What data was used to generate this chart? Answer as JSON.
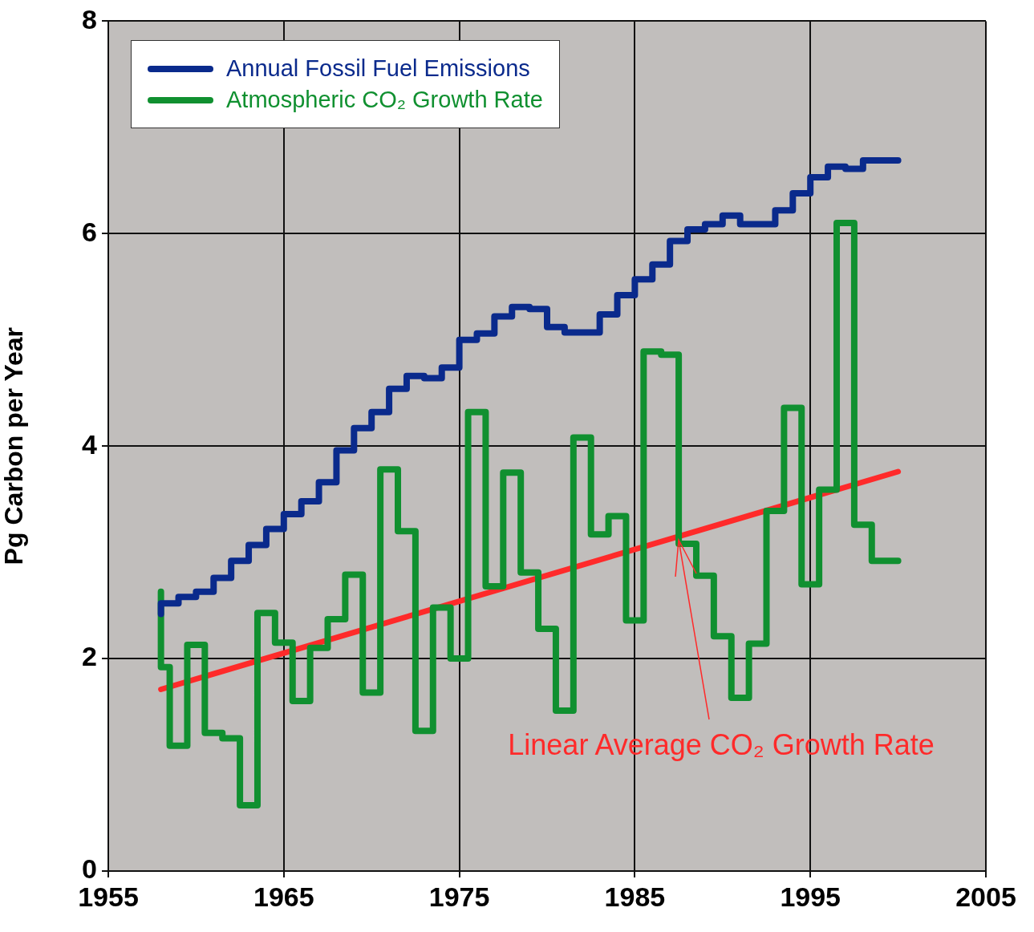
{
  "chart_data": {
    "type": "step",
    "ylabel": "Pg Carbon per Year",
    "xlim": [
      1955,
      2005
    ],
    "xticks": [
      1955,
      1965,
      1975,
      1985,
      1995,
      2005
    ],
    "ylim": [
      0,
      8
    ],
    "yticks": [
      0,
      2,
      4,
      6,
      8
    ],
    "grid": true,
    "legend": "top left",
    "marker": "none",
    "line_style": "solid",
    "annotations": [
      {
        "text": "Linear Average CO₂ Growth Rate",
        "x": 1987.5,
        "y": 3.15
      }
    ],
    "series": [
      {
        "name": "Annual Fossil Fuel Emissions",
        "color": "#0a2a8c",
        "type": "step",
        "x": [
          1958,
          1959,
          1960,
          1961,
          1962,
          1963,
          1964,
          1965,
          1966,
          1967,
          1968,
          1969,
          1970,
          1971,
          1972,
          1973,
          1974,
          1975,
          1976,
          1977,
          1978,
          1979,
          1980,
          1981,
          1982,
          1983,
          1984,
          1985,
          1986,
          1987,
          1988,
          1989,
          1990,
          1991,
          1992,
          1993,
          1994,
          1995,
          1996,
          1997,
          1998,
          1999,
          2000
        ],
        "values": [
          2.42,
          2.52,
          2.58,
          2.63,
          2.76,
          2.92,
          3.07,
          3.22,
          3.36,
          3.48,
          3.66,
          3.96,
          4.17,
          4.32,
          4.54,
          4.66,
          4.64,
          4.74,
          5.0,
          5.06,
          5.22,
          5.31,
          5.29,
          5.12,
          5.07,
          5.07,
          5.24,
          5.42,
          5.57,
          5.71,
          5.93,
          6.04,
          6.09,
          6.17,
          6.09,
          6.09,
          6.22,
          6.38,
          6.53,
          6.63,
          6.61,
          6.69,
          6.69
        ]
      },
      {
        "name": "Atmospheric CO₂ Growth Rate",
        "color": "#109030",
        "type": "step",
        "x": [
          1958,
          1958.5,
          1959.5,
          1960.5,
          1961.5,
          1962.5,
          1963.5,
          1964.5,
          1965.5,
          1966.5,
          1967.5,
          1968.5,
          1969.5,
          1970.5,
          1971.5,
          1972.5,
          1973.5,
          1974.5,
          1975.5,
          1976.5,
          1977.5,
          1978.5,
          1979.5,
          1980.5,
          1981.5,
          1982.5,
          1983.5,
          1984.5,
          1985.5,
          1986.5,
          1987.5,
          1988.5,
          1989.5,
          1990.5,
          1991.5,
          1992.5,
          1993.5,
          1994.5,
          1995.5,
          1996.5,
          1997.5,
          1998.5,
          1999.5,
          2000
        ],
        "values": [
          2.63,
          1.92,
          1.18,
          2.13,
          1.3,
          1.25,
          0.62,
          2.43,
          2.15,
          1.6,
          2.1,
          2.37,
          2.79,
          1.68,
          3.78,
          3.2,
          1.32,
          2.48,
          2.0,
          4.32,
          2.68,
          3.75,
          2.81,
          2.28,
          1.51,
          4.08,
          3.17,
          3.34,
          2.36,
          4.89,
          4.86,
          3.08,
          2.78,
          2.21,
          1.63,
          2.14,
          3.39,
          4.36,
          2.7,
          3.59,
          6.1,
          3.26,
          2.92,
          2.92
        ]
      },
      {
        "color": "#ff2a2a",
        "type": "line",
        "x": [
          1958,
          2000
        ],
        "values": [
          1.71,
          3.76
        ]
      }
    ]
  }
}
